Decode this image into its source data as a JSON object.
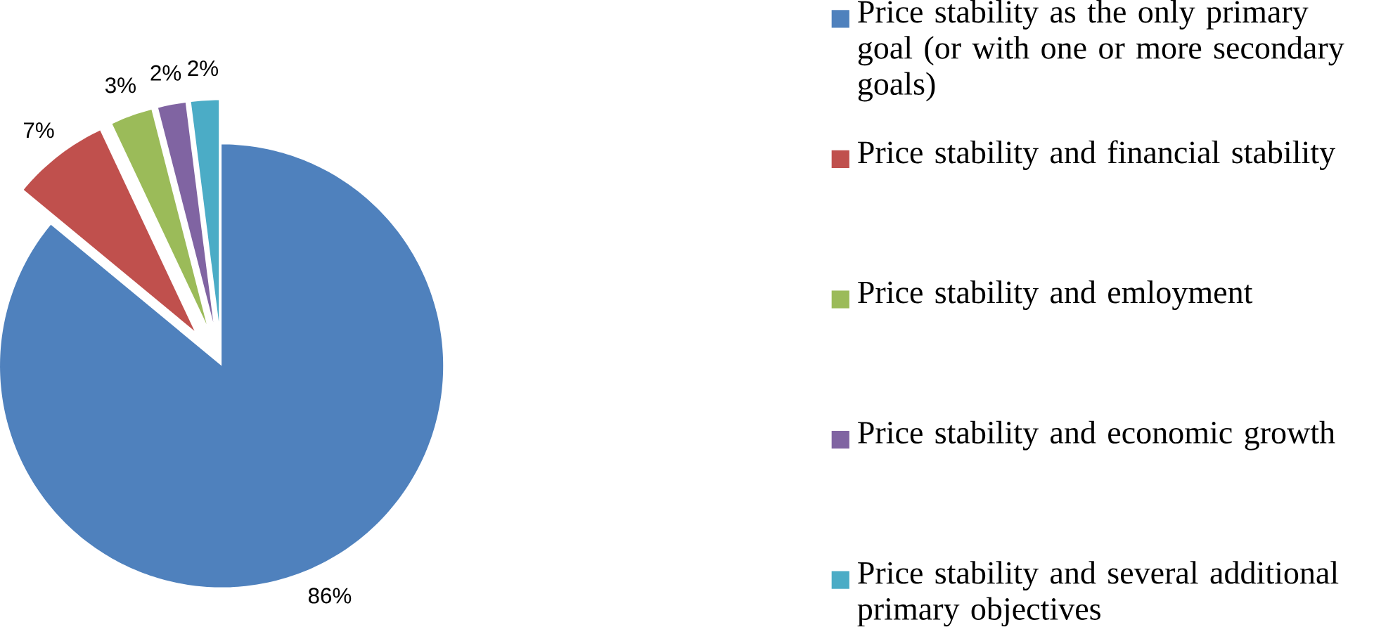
{
  "chart_data": {
    "type": "pie",
    "categories": [
      "Price stability as the only primary goal (or with one or more secondary goals)",
      "Price stability and financial stability",
      "Price stability and emloyment",
      "Price stability and economic growth",
      "Price stability and several additional primary objectives"
    ],
    "values": [
      86,
      7,
      3,
      2,
      2
    ],
    "value_labels": [
      "86%",
      "7%",
      "3%",
      "2%",
      "2%"
    ],
    "colors": [
      "#4f81bd",
      "#c0504d",
      "#9bbb59",
      "#8064a2",
      "#4bacc6"
    ],
    "legend": "right"
  }
}
